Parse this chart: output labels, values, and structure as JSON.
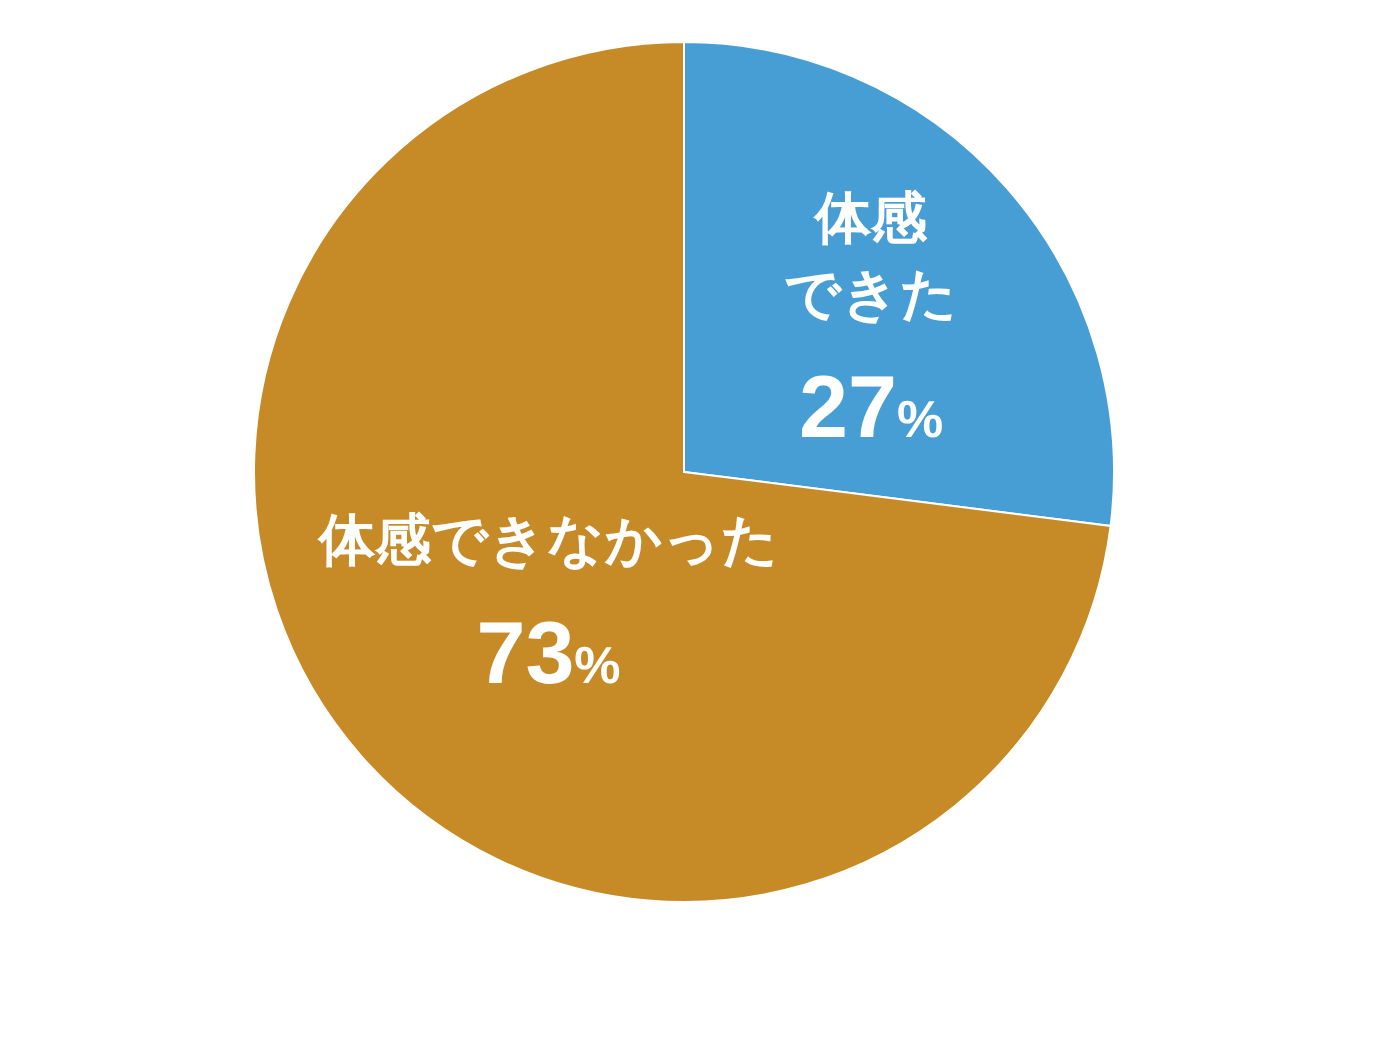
{
  "chart_data": {
    "type": "pie",
    "categories": [
      "体感できた",
      "体感できなかった"
    ],
    "values": [
      27,
      73
    ],
    "colors": [
      "#479ed4",
      "#c68a27"
    ],
    "value_labels": [
      "27%",
      "73%"
    ]
  }
}
